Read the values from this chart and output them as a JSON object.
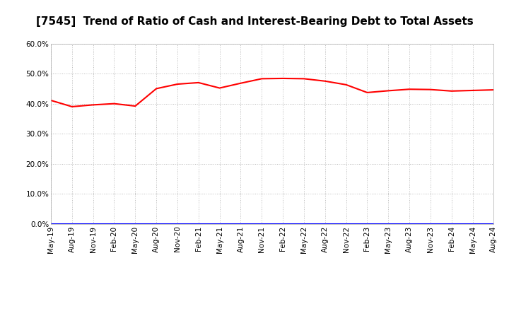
{
  "title": "[7545]  Trend of Ratio of Cash and Interest-Bearing Debt to Total Assets",
  "x_labels": [
    "May-19",
    "Aug-19",
    "Nov-19",
    "Feb-20",
    "May-20",
    "Aug-20",
    "Nov-20",
    "Feb-21",
    "May-21",
    "Aug-21",
    "Nov-21",
    "Feb-22",
    "May-22",
    "Aug-22",
    "Nov-22",
    "Feb-23",
    "May-23",
    "Aug-23",
    "Nov-23",
    "Feb-24",
    "May-24",
    "Aug-24"
  ],
  "cash_values": [
    0.411,
    0.39,
    0.396,
    0.4,
    0.392,
    0.45,
    0.465,
    0.47,
    0.452,
    0.468,
    0.483,
    0.484,
    0.483,
    0.475,
    0.463,
    0.437,
    0.443,
    0.448,
    0.447,
    0.442,
    0.444,
    0.446
  ],
  "debt_values": [
    0.0,
    0.0,
    0.0,
    0.0,
    0.0,
    0.0,
    0.0,
    0.0,
    0.0,
    0.0,
    0.0,
    0.0,
    0.0,
    0.0,
    0.0,
    0.0,
    0.0,
    0.0,
    0.0,
    0.0,
    0.0,
    0.0
  ],
  "cash_color": "#FF0000",
  "debt_color": "#0000FF",
  "ylim": [
    0.0,
    0.6
  ],
  "yticks": [
    0.0,
    0.1,
    0.2,
    0.3,
    0.4,
    0.5,
    0.6
  ],
  "background_color": "#FFFFFF",
  "grid_color": "#BBBBBB",
  "title_fontsize": 11,
  "tick_fontsize": 7.5,
  "legend_fontsize": 9
}
